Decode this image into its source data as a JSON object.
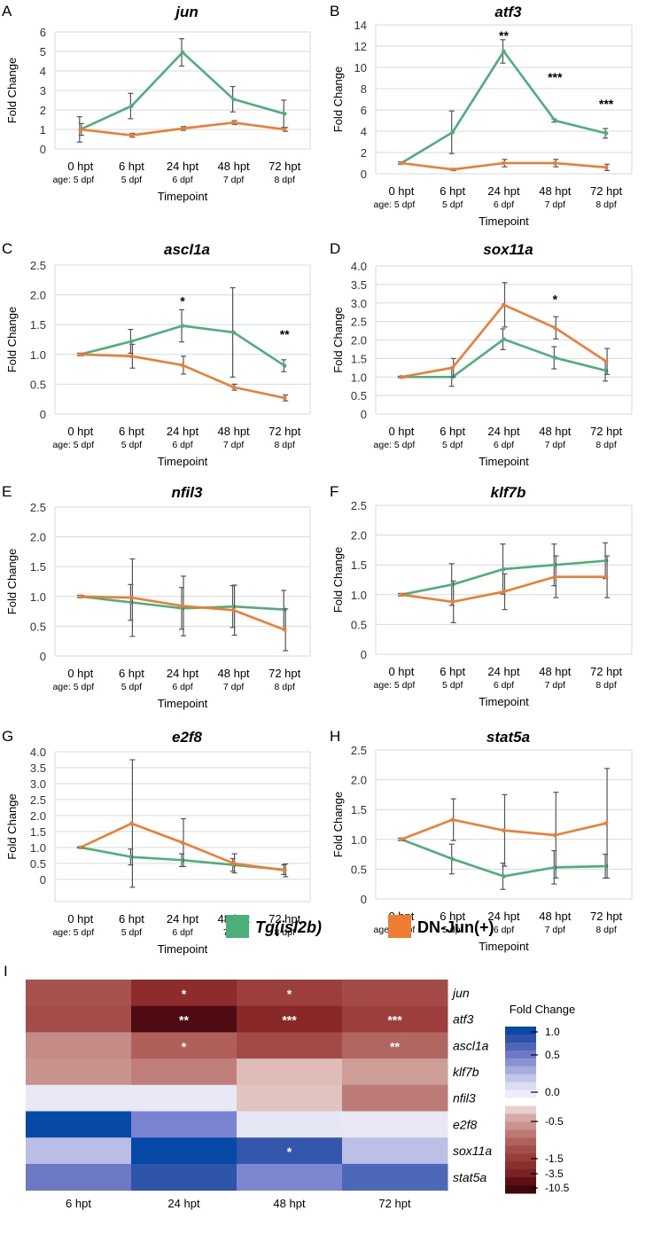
{
  "colors": {
    "green": "#4caf7a",
    "orange": "#ee7d33",
    "grid": "#d9d9d9",
    "errbar": "#555555"
  },
  "panels": [
    {
      "letter": "A",
      "title": "jun",
      "ylabel": "Fold Change",
      "xlabel": "Timepoint",
      "y_ticks": [
        "0",
        "1",
        "2",
        "3",
        "4",
        "5",
        "6"
      ],
      "ylim": [
        0,
        6
      ],
      "x_labels": [
        "0 hpt",
        "6 hpt",
        "24 hpt",
        "48 hpt",
        "72 hpt"
      ],
      "age_labels": [
        "age: 5 dpf",
        "5 dpf",
        "6 dpf",
        "7 dpf",
        "8 dpf"
      ],
      "series": [
        {
          "name": "Tg(isl2b)",
          "values": [
            1.0,
            2.2,
            4.95,
            2.55,
            1.8
          ],
          "err": [
            0.65,
            0.65,
            0.7,
            0.65,
            0.7
          ]
        },
        {
          "name": "DN-Jun(+)",
          "values": [
            1.0,
            0.7,
            1.05,
            1.35,
            1.0
          ],
          "err": [
            0.3,
            0.1,
            0.1,
            0.1,
            0.1
          ]
        }
      ],
      "annotations": []
    },
    {
      "letter": "B",
      "title": "atf3",
      "ylabel": "Fold Change",
      "xlabel": "Timepoint",
      "y_ticks": [
        "0",
        "2",
        "4",
        "6",
        "8",
        "10",
        "12",
        "14"
      ],
      "ylim": [
        0,
        14
      ],
      "x_labels": [
        "0 hpt",
        "6 hpt",
        "24 hpt",
        "48 hpt",
        "72 hpt"
      ],
      "age_labels": [
        "age: 5 dpf",
        "5 dpf",
        "6 dpf",
        "7 dpf",
        "8 dpf"
      ],
      "series": [
        {
          "name": "Tg(isl2b)",
          "values": [
            1.0,
            3.9,
            11.5,
            5.0,
            3.8
          ],
          "err": [
            0.1,
            2.0,
            1.1,
            0.15,
            0.45
          ]
        },
        {
          "name": "DN-Jun(+)",
          "values": [
            1.0,
            0.4,
            1.0,
            1.0,
            0.6
          ],
          "err": [
            0.05,
            0.1,
            0.35,
            0.35,
            0.3
          ]
        }
      ],
      "annotations": [
        {
          "x": 2,
          "y": 13.0,
          "text": "**"
        },
        {
          "x": 3,
          "y": 9.1,
          "text": "***"
        },
        {
          "x": 4,
          "y": 6.6,
          "text": "***"
        }
      ]
    },
    {
      "letter": "C",
      "title": "ascl1a",
      "ylabel": "Fold Change",
      "xlabel": "Timepoint",
      "y_ticks": [
        "0",
        "0.5",
        "1.0",
        "1.5",
        "2.0",
        "2.5"
      ],
      "ylim": [
        0,
        2.5
      ],
      "x_labels": [
        "0 hpt",
        "6 hpt",
        "24 hpt",
        "48 hpt",
        "72 hpt"
      ],
      "age_labels": [
        "age: 5 dpf",
        "5 dpf",
        "6 dpf",
        "7 dpf",
        "8 dpf"
      ],
      "series": [
        {
          "name": "Tg(isl2b)",
          "values": [
            1.0,
            1.22,
            1.48,
            1.37,
            0.81
          ],
          "err": [
            0.02,
            0.2,
            0.27,
            0.75,
            0.1
          ]
        },
        {
          "name": "DN-Jun(+)",
          "values": [
            1.0,
            0.97,
            0.82,
            0.45,
            0.27
          ],
          "err": [
            0.02,
            0.2,
            0.15,
            0.05,
            0.05
          ]
        }
      ],
      "annotations": [
        {
          "x": 2,
          "y": 1.9,
          "text": "*"
        },
        {
          "x": 4,
          "y": 1.34,
          "text": "**"
        }
      ]
    },
    {
      "letter": "D",
      "title": "sox11a",
      "ylabel": "Fold Change",
      "xlabel": "Timepoint",
      "y_ticks": [
        "0",
        "0.5",
        "1.0",
        "1.5",
        "2.0",
        "2.5",
        "3.0",
        "3.5",
        "4.0"
      ],
      "ylim": [
        0,
        4.0
      ],
      "x_labels": [
        "0 hpt",
        "6 hpt",
        "24 hpt",
        "48 hpt",
        "72 hpt"
      ],
      "age_labels": [
        "age: 5 dpf",
        "5 dpf",
        "6 dpf",
        "7 dpf",
        "8 dpf"
      ],
      "series": [
        {
          "name": "Tg(isl2b)",
          "values": [
            1.0,
            1.0,
            2.02,
            1.52,
            1.17
          ],
          "err": [
            0.02,
            0.25,
            0.28,
            0.3,
            0.28
          ]
        },
        {
          "name": "DN-Jun(+)",
          "values": [
            1.0,
            1.25,
            2.95,
            2.33,
            1.42
          ],
          "err": [
            0.02,
            0.25,
            0.6,
            0.3,
            0.35
          ]
        }
      ],
      "annotations": [
        {
          "x": 3,
          "y": 3.1,
          "text": "*"
        }
      ]
    },
    {
      "letter": "E",
      "title": "nfil3",
      "ylabel": "Fold Change",
      "xlabel": "Timepoint",
      "y_ticks": [
        "0",
        "0.5",
        "1.0",
        "1.5",
        "2.0",
        "2.5"
      ],
      "ylim": [
        0,
        2.5
      ],
      "x_labels": [
        "0 hpt",
        "6 hpt",
        "24 hpt",
        "48 hpt",
        "72 hpt"
      ],
      "age_labels": [
        "age: 5 dpf",
        "5 dpf",
        "6 dpf",
        "7 dpf",
        "8 dpf"
      ],
      "series": [
        {
          "name": "Tg(isl2b)",
          "values": [
            1.0,
            0.9,
            0.8,
            0.83,
            0.78
          ],
          "err": [
            0.02,
            0.3,
            0.35,
            0.35,
            0.32
          ]
        },
        {
          "name": "DN-Jun(+)",
          "values": [
            1.0,
            0.98,
            0.84,
            0.77,
            0.44
          ],
          "err": [
            0.02,
            0.65,
            0.5,
            0.42,
            0.35
          ]
        }
      ],
      "annotations": []
    },
    {
      "letter": "F",
      "title": "klf7b",
      "ylabel": "Fold Change",
      "xlabel": "Timepoint",
      "y_ticks": [
        "0",
        "0.5",
        "1.0",
        "1.5",
        "2.0",
        "2.5"
      ],
      "ylim": [
        0,
        2.5
      ],
      "x_labels": [
        "0 hpt",
        "6 hpt",
        "24 hpt",
        "48 hpt",
        "72 hpt"
      ],
      "age_labels": [
        "age: 5 dpf",
        "5 dpf",
        "6 dpf",
        "7 dpf",
        "8 dpf"
      ],
      "series": [
        {
          "name": "Tg(isl2b)",
          "values": [
            1.0,
            1.17,
            1.43,
            1.5,
            1.57
          ],
          "err": [
            0.02,
            0.35,
            0.42,
            0.35,
            0.3
          ]
        },
        {
          "name": "DN-Jun(+)",
          "values": [
            1.0,
            0.88,
            1.05,
            1.3,
            1.3
          ],
          "err": [
            0.02,
            0.35,
            0.3,
            0.35,
            0.35
          ]
        }
      ],
      "annotations": []
    },
    {
      "letter": "G",
      "title": "e2f8",
      "ylabel": "Fold Change",
      "xlabel": "Timepoint",
      "y_ticks": [
        "0",
        "0.5",
        "1.0",
        "1.5",
        "2.0",
        "2.5",
        "3.0",
        "3.5",
        "4.0"
      ],
      "ylim": [
        -0.7,
        4.0
      ],
      "x_labels": [
        "0 hpt",
        "6 hpt",
        "24 hpt",
        "48 hpt",
        "72 hpt"
      ],
      "age_labels": [
        "age: 5 dpf",
        "5 dpf",
        "6 dpf",
        "7 dpf",
        "8 dpf"
      ],
      "series": [
        {
          "name": "Tg(isl2b)",
          "values": [
            1.0,
            0.7,
            0.6,
            0.45,
            0.3
          ],
          "err": [
            0.02,
            0.25,
            0.2,
            0.2,
            0.15
          ]
        },
        {
          "name": "DN-Jun(+)",
          "values": [
            1.0,
            1.75,
            1.15,
            0.5,
            0.28
          ],
          "err": [
            0.02,
            2.0,
            0.75,
            0.3,
            0.2
          ]
        }
      ],
      "annotations": []
    },
    {
      "letter": "H",
      "title": "stat5a",
      "ylabel": "Fold Change",
      "xlabel": "Timepoint",
      "y_ticks": [
        "0",
        "0.5",
        "1.0",
        "1.5",
        "2.0",
        "2.5"
      ],
      "ylim": [
        0,
        2.5
      ],
      "x_labels": [
        "0 hpt",
        "6 hpt",
        "24 hpt",
        "48 hpt",
        "72 hpt"
      ],
      "age_labels": [
        "age: 5 dpf",
        "5 dpf",
        "6 dpf",
        "7 dpf",
        "8 dpf"
      ],
      "series": [
        {
          "name": "Tg(isl2b)",
          "values": [
            1.0,
            0.67,
            0.38,
            0.53,
            0.55
          ],
          "err": [
            0.02,
            0.25,
            0.22,
            0.28,
            0.2
          ]
        },
        {
          "name": "DN-Jun(+)",
          "values": [
            1.0,
            1.33,
            1.15,
            1.07,
            1.27
          ],
          "err": [
            0.02,
            0.35,
            0.6,
            0.72,
            0.92
          ]
        }
      ],
      "annotations": []
    }
  ],
  "legend": [
    {
      "name": "Tg(isl2b)",
      "color": "#4caf7a",
      "italic": true
    },
    {
      "name": "DN-Jun(+)",
      "color": "#ee7d33",
      "italic": false
    }
  ],
  "heatmap": {
    "letter": "I",
    "columns": [
      "6 hpt",
      "24 hpt",
      "48 hpt",
      "72 hpt"
    ],
    "rows": [
      "jun",
      "atf3",
      "ascl1a",
      "klf7b",
      "nfil3",
      "e2f8",
      "sox11a",
      "stat5a"
    ],
    "colors": [
      [
        "#a8524f",
        "#8e2b2b",
        "#9c3e3c",
        "#a44b48"
      ],
      [
        "#a34c49",
        "#4e0c12",
        "#892828",
        "#9c3f3c"
      ],
      [
        "#c58c87",
        "#b05f5b",
        "#a24a47",
        "#b26662"
      ],
      [
        "#c8928d",
        "#bf7e79",
        "#dfbcb7",
        "#cf9d98"
      ],
      [
        "#e8e8f6",
        "#e8e8f6",
        "#e1c4bf",
        "#bc7b76"
      ],
      [
        "#0749a6",
        "#7a82d2",
        "#e6e6f5",
        "#e8e8f6"
      ],
      [
        "#babde5",
        "#0749a6",
        "#3257ac",
        "#bcbfe6"
      ],
      [
        "#6c79c4",
        "#2e55aa",
        "#7d86d1",
        "#4d68b8"
      ]
    ],
    "stars": [
      [
        "",
        "*",
        "*",
        ""
      ],
      [
        "",
        "**",
        "***",
        "***"
      ],
      [
        "",
        "*",
        "",
        "**"
      ],
      [
        "",
        "",
        "",
        ""
      ],
      [
        "",
        "",
        "",
        ""
      ],
      [
        "",
        "",
        "",
        ""
      ],
      [
        "",
        "",
        "*",
        ""
      ],
      [
        "",
        "",
        "",
        ""
      ]
    ],
    "scale": {
      "title": "Fold Change",
      "labels": [
        "1.0",
        "0.5",
        "0.0",
        "-0.5",
        "-1.5",
        "-3.5",
        "-10.5"
      ],
      "colors": [
        "#0749a6",
        "#2f52a8",
        "#4c66b8",
        "#6c79c4",
        "#8a92d4",
        "#a6acdd",
        "#c3c6e9",
        "#dcdcf2",
        "#eeeefa",
        "#ffffff",
        "#e9cfcb",
        "#d9aaa5",
        "#cb938e",
        "#bd7a75",
        "#af625e",
        "#a24e4b",
        "#963e3c",
        "#8a2e2e",
        "#7a2222",
        "#5c1016",
        "#40070c"
      ]
    }
  }
}
